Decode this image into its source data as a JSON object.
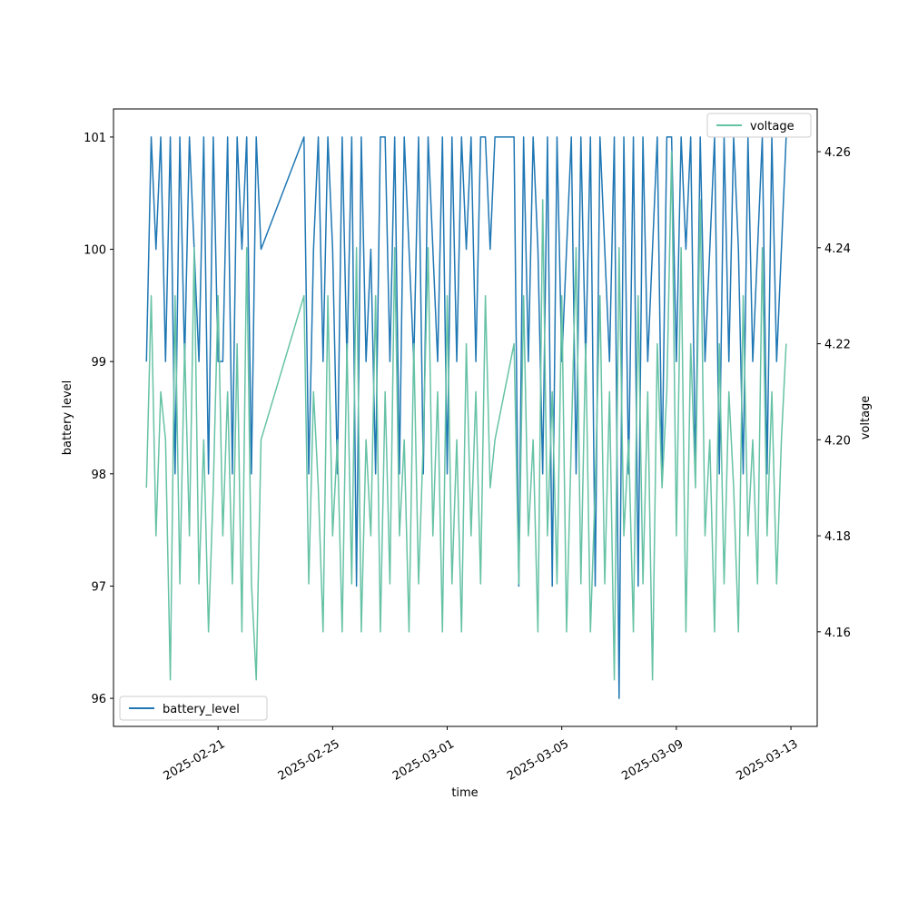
{
  "chart_data": {
    "type": "line",
    "xlabel": "time",
    "ylabel": "battery level",
    "y2label": "voltage",
    "x": [
      "2025-02-18 12:00",
      "2025-02-18 16:00",
      "2025-02-18 20:00",
      "2025-02-19 00:00",
      "2025-02-19 04:00",
      "2025-02-19 08:00",
      "2025-02-19 12:00",
      "2025-02-19 16:00",
      "2025-02-19 20:00",
      "2025-02-20 00:00",
      "2025-02-20 04:00",
      "2025-02-20 08:00",
      "2025-02-20 12:00",
      "2025-02-20 16:00",
      "2025-02-20 20:00",
      "2025-02-21 00:00",
      "2025-02-21 04:00",
      "2025-02-21 08:00",
      "2025-02-21 12:00",
      "2025-02-21 16:00",
      "2025-02-21 20:00",
      "2025-02-22 00:00",
      "2025-02-22 04:00",
      "2025-02-22 08:00",
      "2025-02-22 12:00",
      "2025-02-24 00:00",
      "2025-02-24 04:00",
      "2025-02-24 08:00",
      "2025-02-24 12:00",
      "2025-02-24 16:00",
      "2025-02-24 20:00",
      "2025-02-25 00:00",
      "2025-02-25 04:00",
      "2025-02-25 08:00",
      "2025-02-25 12:00",
      "2025-02-25 16:00",
      "2025-02-25 20:00",
      "2025-02-26 00:00",
      "2025-02-26 04:00",
      "2025-02-26 08:00",
      "2025-02-26 12:00",
      "2025-02-26 16:00",
      "2025-02-26 20:00",
      "2025-02-27 00:00",
      "2025-02-27 04:00",
      "2025-02-27 08:00",
      "2025-02-27 12:00",
      "2025-02-27 16:00",
      "2025-02-27 20:00",
      "2025-02-28 00:00",
      "2025-02-28 04:00",
      "2025-02-28 08:00",
      "2025-02-28 12:00",
      "2025-02-28 16:00",
      "2025-02-28 20:00",
      "2025-03-01 00:00",
      "2025-03-01 04:00",
      "2025-03-01 08:00",
      "2025-03-01 12:00",
      "2025-03-01 16:00",
      "2025-03-01 20:00",
      "2025-03-02 00:00",
      "2025-03-02 04:00",
      "2025-03-02 08:00",
      "2025-03-02 12:00",
      "2025-03-02 16:00",
      "2025-03-03 08:00",
      "2025-03-03 12:00",
      "2025-03-03 16:00",
      "2025-03-03 20:00",
      "2025-03-04 00:00",
      "2025-03-04 04:00",
      "2025-03-04 08:00",
      "2025-03-04 12:00",
      "2025-03-04 16:00",
      "2025-03-04 20:00",
      "2025-03-05 00:00",
      "2025-03-05 04:00",
      "2025-03-05 08:00",
      "2025-03-05 12:00",
      "2025-03-05 16:00",
      "2025-03-05 20:00",
      "2025-03-06 00:00",
      "2025-03-06 04:00",
      "2025-03-06 08:00",
      "2025-03-06 12:00",
      "2025-03-06 16:00",
      "2025-03-06 20:00",
      "2025-03-07 00:00",
      "2025-03-07 04:00",
      "2025-03-07 08:00",
      "2025-03-07 12:00",
      "2025-03-07 16:00",
      "2025-03-07 20:00",
      "2025-03-08 00:00",
      "2025-03-08 04:00",
      "2025-03-08 08:00",
      "2025-03-08 12:00",
      "2025-03-08 16:00",
      "2025-03-08 20:00",
      "2025-03-09 00:00",
      "2025-03-09 04:00",
      "2025-03-09 08:00",
      "2025-03-09 12:00",
      "2025-03-09 16:00",
      "2025-03-09 20:00",
      "2025-03-10 00:00",
      "2025-03-10 04:00",
      "2025-03-10 08:00",
      "2025-03-10 12:00",
      "2025-03-10 16:00",
      "2025-03-10 20:00",
      "2025-03-11 00:00",
      "2025-03-11 04:00",
      "2025-03-11 08:00",
      "2025-03-11 12:00",
      "2025-03-11 16:00",
      "2025-03-11 20:00",
      "2025-03-12 00:00",
      "2025-03-12 04:00",
      "2025-03-12 08:00",
      "2025-03-12 12:00",
      "2025-03-12 16:00",
      "2025-03-12 20:00"
    ],
    "series": [
      {
        "name": "battery_level",
        "color": "#1f77b4",
        "axis": "y",
        "legend_loc": "lower left",
        "values": [
          99,
          101,
          100,
          101,
          99,
          101,
          98,
          101,
          99,
          101,
          100,
          99,
          101,
          98,
          101,
          99,
          99,
          101,
          98,
          101,
          100,
          101,
          98,
          101,
          100,
          101,
          98,
          100,
          101,
          99,
          101,
          100,
          98,
          101,
          99,
          101,
          97,
          101,
          99,
          100,
          98,
          101,
          101,
          99,
          101,
          98,
          101,
          100,
          99,
          101,
          98,
          101,
          100,
          99,
          101,
          98,
          101,
          99,
          101,
          100,
          101,
          99,
          101,
          101,
          100,
          101,
          101,
          97,
          101,
          99,
          101,
          100,
          98,
          101,
          97,
          101,
          99,
          100,
          101,
          98,
          101,
          99,
          101,
          97,
          101,
          100,
          99,
          101,
          96,
          101,
          98,
          101,
          97,
          101,
          99,
          100,
          101,
          98,
          101,
          101,
          99,
          101,
          100,
          101,
          98,
          101,
          99,
          100,
          101,
          98,
          101,
          99,
          101,
          100,
          98,
          101,
          99,
          100,
          101,
          98,
          101,
          99,
          100,
          101
        ]
      },
      {
        "name": "voltage",
        "color": "#66c2a5",
        "axis": "y2",
        "legend_loc": "upper right",
        "values": [
          4.19,
          4.23,
          4.18,
          4.21,
          4.2,
          4.15,
          4.23,
          4.17,
          4.22,
          4.18,
          4.24,
          4.17,
          4.2,
          4.16,
          4.19,
          4.23,
          4.18,
          4.21,
          4.17,
          4.22,
          4.16,
          4.24,
          4.17,
          4.15,
          4.2,
          4.23,
          4.17,
          4.21,
          4.19,
          4.16,
          4.23,
          4.18,
          4.2,
          4.16,
          4.22,
          4.17,
          4.24,
          4.16,
          4.2,
          4.18,
          4.23,
          4.16,
          4.21,
          4.17,
          4.24,
          4.18,
          4.2,
          4.16,
          4.22,
          4.17,
          4.2,
          4.24,
          4.18,
          4.21,
          4.16,
          4.23,
          4.17,
          4.2,
          4.16,
          4.22,
          4.18,
          4.21,
          4.17,
          4.23,
          4.19,
          4.2,
          4.22,
          4.17,
          4.23,
          4.18,
          4.2,
          4.16,
          4.25,
          4.18,
          4.21,
          4.17,
          4.23,
          4.16,
          4.2,
          4.24,
          4.17,
          4.22,
          4.16,
          4.19,
          4.23,
          4.17,
          4.21,
          4.15,
          4.24,
          4.18,
          4.2,
          4.16,
          4.23,
          4.17,
          4.21,
          4.15,
          4.22,
          4.19,
          4.21,
          4.26,
          4.18,
          4.24,
          4.16,
          4.22,
          4.19,
          4.25,
          4.18,
          4.2,
          4.16,
          4.22,
          4.17,
          4.21,
          4.19,
          4.16,
          4.23,
          4.18,
          4.2,
          4.17,
          4.24,
          4.18,
          4.21,
          4.17,
          4.2,
          4.22
        ]
      }
    ],
    "xlim": [
      "2025-02-17 08:24",
      "2025-03-13 22:00"
    ],
    "xticks": [
      "2025-02-21",
      "2025-02-25",
      "2025-03-01",
      "2025-03-05",
      "2025-03-09",
      "2025-03-13"
    ],
    "ylim": [
      95.75,
      101.25
    ],
    "yticks": [
      96,
      97,
      98,
      99,
      100,
      101
    ],
    "y2lim": [
      4.1403,
      4.2689
    ],
    "y2ticks": [
      4.16,
      4.18,
      {
        "value": 4.2,
        "label": "4.20"
      },
      4.22,
      4.24,
      4.26
    ]
  }
}
